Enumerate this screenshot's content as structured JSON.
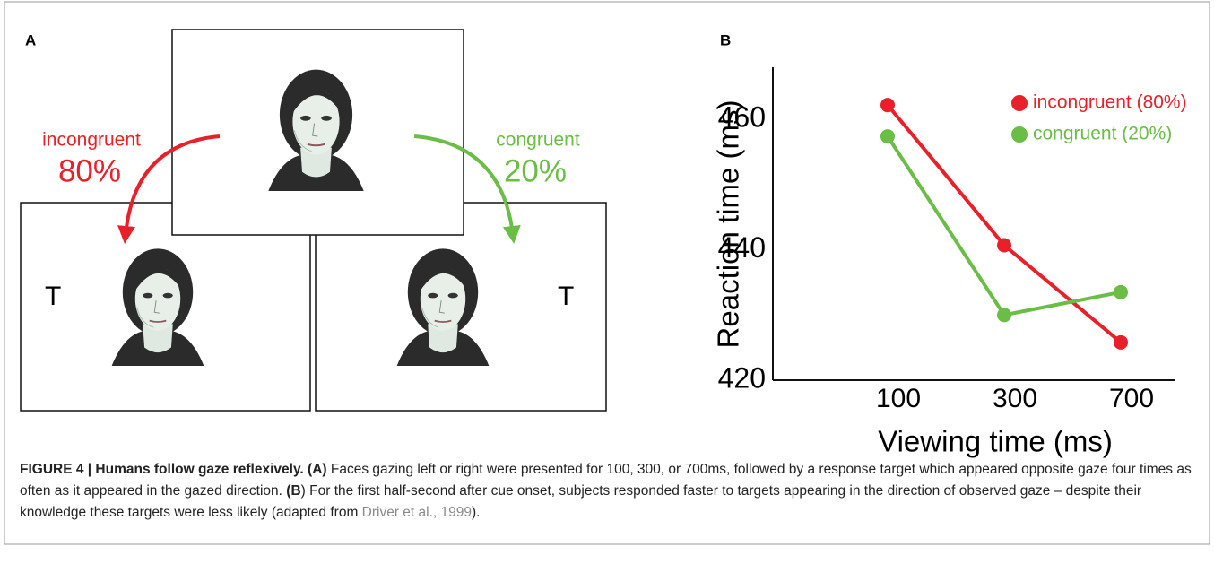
{
  "panel_a": {
    "label": "A",
    "left_cue": {
      "name": "incongruent",
      "percent": "80%",
      "color": "#e8202a"
    },
    "right_cue": {
      "name": "congruent",
      "percent": "20%",
      "color": "#6abd45"
    },
    "target_left": "T",
    "target_right": "T"
  },
  "chart_data": {
    "type": "line",
    "panel_label": "B",
    "xlabel": "Viewing time  (ms)",
    "ylabel": "Reaction time (ms)",
    "categories": [
      "100",
      "300",
      "700"
    ],
    "series": [
      {
        "name": "incongruent (80%)",
        "color": "#e8202a",
        "values": [
          462.2,
          440.7,
          425.8
        ]
      },
      {
        "name": "congruent (20%)",
        "color": "#6abd45",
        "values": [
          457.4,
          430.0,
          433.5
        ]
      }
    ],
    "ylim": [
      420,
      468
    ],
    "yticks": [
      420,
      440,
      460
    ],
    "grid": false,
    "legend": "top-right"
  },
  "caption": {
    "figure": "FIGURE 4 | Humans follow gaze reflexively.",
    "part_a_label": "(A)",
    "part_a_text": " Faces gazing left or right were presented for 100, 300, or 700ms, followed by a response target which appeared opposite gaze four times as often as it appeared in the gazed direction. ",
    "part_b_label": "(B",
    "part_b_close": ")",
    "part_b_text": " For the first half-second after cue onset, subjects responded faster to targets appearing in the direction of observed gaze – despite their knowledge these targets were less likely (adapted from ",
    "reference": "Driver et al., 1999",
    "end": ")."
  }
}
